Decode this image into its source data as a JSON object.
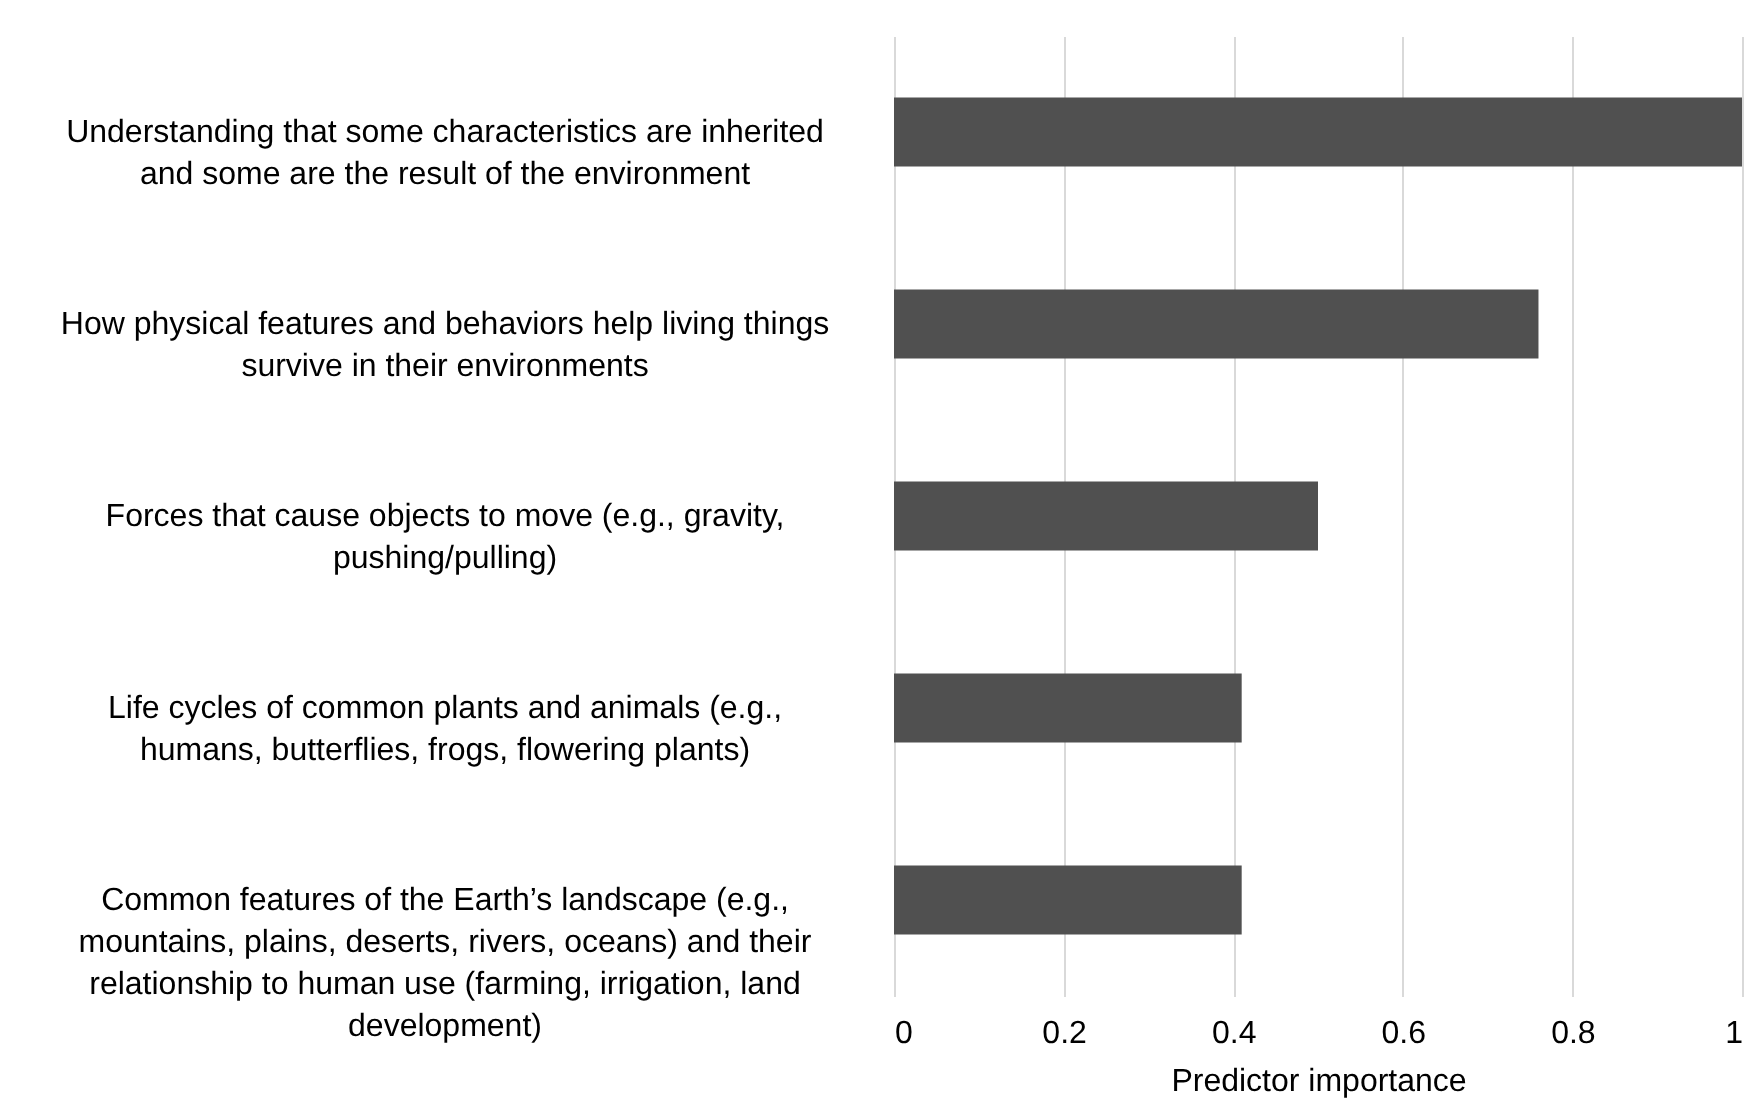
{
  "chart_data": {
    "type": "bar",
    "orientation": "horizontal",
    "xlabel": "Predictor importance",
    "categories": [
      "Understanding that some characteristics are inherited and some are the result of the environment",
      "How physical features and behaviors help living things survive in their environments",
      "Forces that cause objects to move (e.g., gravity, pushing/pulling)",
      "Life cycles of common plants and animals (e.g., humans, butterflies, frogs, flowering plants)",
      "Common features of the Earth’s landscape (e.g., mountains, plains, deserts, rivers, oceans) and their relationship to human use (farming, irrigation, land development)"
    ],
    "values": [
      1,
      0.76,
      0.5,
      0.41,
      0.41
    ],
    "color": "#505050",
    "xlim": [
      0,
      1
    ],
    "xticks": [
      0,
      0.2,
      0.4,
      0.6,
      0.8,
      1
    ],
    "grid": "x"
  }
}
